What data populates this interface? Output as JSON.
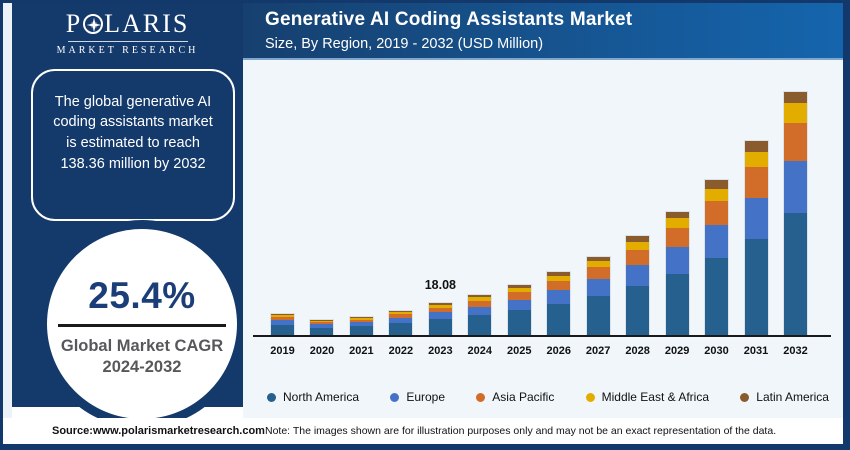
{
  "brand": {
    "name": "POLARIS",
    "tagline": "MARKET RESEARCH",
    "o_icon": "compass-star-icon"
  },
  "sidebar": {
    "headline": "The global generative AI coding assistants market is estimated to reach 138.36 million by 2032",
    "cagr": {
      "value": "25.4%",
      "label_line1": "Global Market CAGR",
      "label_line2": "2024-2032"
    }
  },
  "header": {
    "title": "Generative AI Coding Assistants Market",
    "subtitle": "Size, By Region, 2019 - 2032 (USD Million)"
  },
  "footer": {
    "source": "Source:www.polarismarketresearch.com",
    "note": "Note: The images shown are for illustration purposes only and may not be an exact representation of the data."
  },
  "colors": {
    "navy": "#14396B",
    "header_gradient_start": "#16406F",
    "header_gradient_end": "#1565AD",
    "chart_background": "#F1F6FA",
    "north_america": "#26608F",
    "europe": "#4472C7",
    "asia_pacific": "#D16D28",
    "middle_east_africa": "#E3AD00",
    "latin_america": "#8A5B2C"
  },
  "chart_data": {
    "type": "bar",
    "stacked": true,
    "title": "Generative AI Coding Assistants Market",
    "subtitle": "Size, By Region, 2019 - 2032 (USD Million)",
    "unit": "USD Million",
    "grid": false,
    "legend_position": "bottom",
    "ylim": [
      0,
      140
    ],
    "categories": [
      "2019",
      "2020",
      "2021",
      "2022",
      "2023",
      "2024",
      "2025",
      "2026",
      "2027",
      "2028",
      "2029",
      "2030",
      "2031",
      "2032"
    ],
    "series": [
      {
        "name": "North America",
        "color": "#26608F",
        "values": [
          5.9,
          4.2,
          5.0,
          6.8,
          9.0,
          11.2,
          14.0,
          17.7,
          22.1,
          27.8,
          34.8,
          43.6,
          54.6,
          69.5
        ]
      },
      {
        "name": "Europe",
        "color": "#4472C7",
        "values": [
          2.6,
          1.9,
          2.2,
          2.9,
          3.9,
          4.9,
          6.1,
          7.7,
          9.6,
          12.1,
          15.1,
          18.9,
          23.7,
          29.6
        ]
      },
      {
        "name": "Asia Pacific",
        "color": "#D16D28",
        "values": [
          1.9,
          1.3,
          1.6,
          2.1,
          2.8,
          3.5,
          4.4,
          5.5,
          6.9,
          8.7,
          10.9,
          13.7,
          17.2,
          21.5
        ]
      },
      {
        "name": "Middle East & Africa",
        "color": "#E3AD00",
        "values": [
          1.0,
          0.7,
          0.9,
          1.2,
          1.5,
          1.9,
          2.4,
          2.9,
          3.7,
          4.6,
          5.8,
          7.2,
          9.0,
          11.2
        ]
      },
      {
        "name": "Latin America",
        "color": "#8A5B2C",
        "values": [
          0.6,
          0.5,
          0.5,
          0.7,
          0.88,
          1.2,
          1.5,
          1.9,
          2.4,
          2.9,
          3.7,
          4.7,
          5.9,
          6.56
        ]
      }
    ],
    "totals_note": "2023 total labeled 18.08; 2032 total 138.36 (stated in sidebar); segment values estimated from bar heights",
    "annotations": [
      {
        "category": "2023",
        "text": "18.08"
      }
    ]
  }
}
